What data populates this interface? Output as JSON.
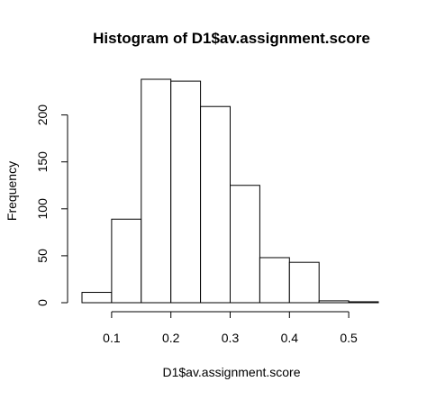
{
  "chart_data": {
    "type": "bar",
    "title": "Histogram of D1$av.assignment.score",
    "xlabel": "D1$av.assignment.score",
    "ylabel": "Frequency",
    "bins": [
      {
        "start": 0.05,
        "end": 0.1,
        "count": 11
      },
      {
        "start": 0.1,
        "end": 0.15,
        "count": 89
      },
      {
        "start": 0.15,
        "end": 0.2,
        "count": 238
      },
      {
        "start": 0.2,
        "end": 0.25,
        "count": 236
      },
      {
        "start": 0.25,
        "end": 0.3,
        "count": 209
      },
      {
        "start": 0.3,
        "end": 0.35,
        "count": 125
      },
      {
        "start": 0.35,
        "end": 0.4,
        "count": 48
      },
      {
        "start": 0.4,
        "end": 0.45,
        "count": 43
      },
      {
        "start": 0.45,
        "end": 0.5,
        "count": 2
      },
      {
        "start": 0.5,
        "end": 0.55,
        "count": 1
      }
    ],
    "xticks": [
      {
        "value": 0.1,
        "label": "0.1"
      },
      {
        "value": 0.2,
        "label": "0.2"
      },
      {
        "value": 0.3,
        "label": "0.3"
      },
      {
        "value": 0.4,
        "label": "0.4"
      },
      {
        "value": 0.5,
        "label": "0.5"
      }
    ],
    "yticks": [
      {
        "value": 0,
        "label": "0"
      },
      {
        "value": 50,
        "label": "50"
      },
      {
        "value": 100,
        "label": "100"
      },
      {
        "value": 150,
        "label": "150"
      },
      {
        "value": 200,
        "label": "200"
      }
    ],
    "xlim": [
      0.05,
      0.55
    ],
    "ylim": [
      0,
      238
    ],
    "grid": false,
    "legend": "none",
    "bar_fill": "#ffffff",
    "bar_stroke": "#000000"
  }
}
